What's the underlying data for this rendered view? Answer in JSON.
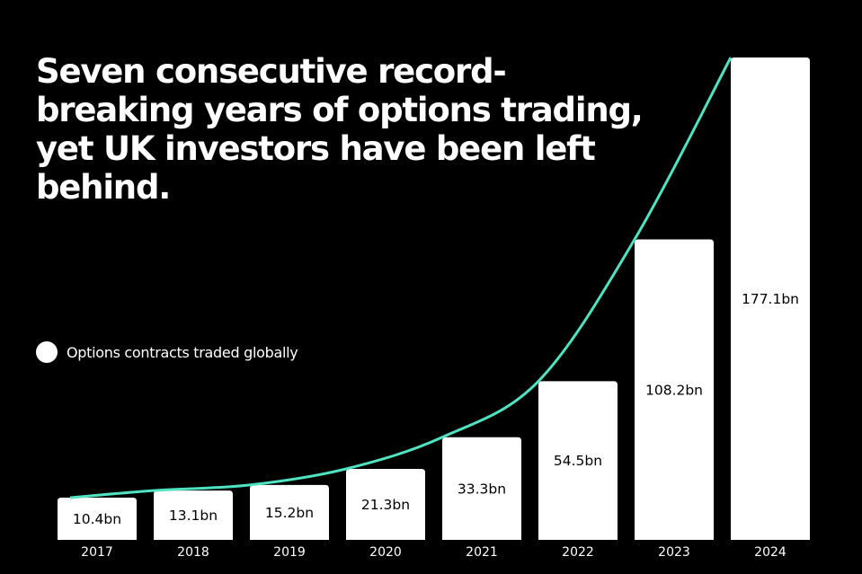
{
  "chart_data": {
    "type": "bar",
    "title": "Seven consecutive record-breaking years of options trading, yet UK investors have been left behind.",
    "xlabel": "",
    "ylabel": "",
    "categories": [
      "2017",
      "2018",
      "2019",
      "2020",
      "2021",
      "2022",
      "2023",
      "2024"
    ],
    "series": [
      {
        "name": "Options contracts traded globally",
        "values": [
          10.4,
          13.1,
          15.2,
          21.3,
          33.3,
          54.5,
          108.2,
          177.1
        ],
        "labels": [
          "10.4bn",
          "13.1bn",
          "15.2bn",
          "21.3bn",
          "33.3bn",
          "54.5bn",
          "108.2bn",
          "177.1bn"
        ]
      }
    ],
    "unit": "bn",
    "grid": false,
    "legend_position": "left",
    "trend_line": true,
    "colors": {
      "background": "#000000",
      "bars": "#ffffff",
      "trend_line": "#4fe3c1",
      "text": "#ffffff"
    }
  }
}
